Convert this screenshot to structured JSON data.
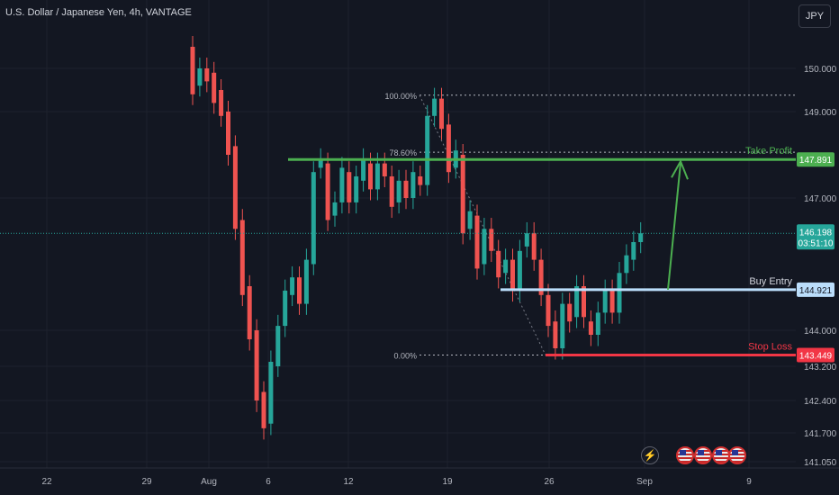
{
  "header": {
    "title": "U.S. Dollar / Japanese Yen, 4h, VANTAGE",
    "currency": "JPY"
  },
  "colors": {
    "up": "#26a69a",
    "down": "#ef5350",
    "target": "#4caf50",
    "entry": "#bbdefb",
    "stop": "#f23645",
    "bg": "#131722"
  },
  "bottom_icons": [
    "flash-icon",
    "us-flag-icon",
    "us-flag-icon",
    "us-flag-icon",
    "us-flag-icon"
  ],
  "chart_data": {
    "type": "candlestick",
    "title": "U.S. Dollar / Japanese Yen, 4h, VANTAGE",
    "y_ticks": [
      "150.000",
      "149.000",
      "147.000",
      "144.000",
      "143.200",
      "142.400",
      "141.700",
      "141.050"
    ],
    "x_ticks": [
      "22",
      "29",
      "Aug",
      "6",
      "12",
      "19",
      "26",
      "Sep",
      "9"
    ],
    "current_price": "146.198",
    "countdown": "03:51:10",
    "levels": [
      {
        "name": "Take Profit",
        "value": "147.891"
      },
      {
        "name": "Buy Entry",
        "value": "144.921"
      },
      {
        "name": "Stop Loss",
        "value": "143.449"
      }
    ],
    "fibonacci": [
      {
        "label": "100.00%",
        "price": 149.38
      },
      {
        "label": "78.60%",
        "price": 148.06
      },
      {
        "label": "0.00%",
        "price": 143.45
      }
    ],
    "candles_approx": [
      [
        150.5,
        149.4
      ],
      [
        149.6,
        150.0
      ],
      [
        150.0,
        149.7
      ],
      [
        149.9,
        149.2
      ],
      [
        149.5,
        148.9
      ],
      [
        149.0,
        148.0
      ],
      [
        148.2,
        146.3
      ],
      [
        146.5,
        144.8
      ],
      [
        145.0,
        143.8
      ],
      [
        144.0,
        142.4
      ],
      [
        142.6,
        141.8
      ],
      [
        141.9,
        143.3
      ],
      [
        143.2,
        144.1
      ],
      [
        144.1,
        144.9
      ],
      [
        144.8,
        145.2
      ],
      [
        145.2,
        144.6
      ],
      [
        144.6,
        145.6
      ],
      [
        145.5,
        147.6
      ],
      [
        147.7,
        147.9
      ],
      [
        147.8,
        146.5
      ],
      [
        146.6,
        146.9
      ],
      [
        146.9,
        147.7
      ],
      [
        147.6,
        146.9
      ],
      [
        146.9,
        147.5
      ],
      [
        147.4,
        147.9
      ],
      [
        147.8,
        147.2
      ],
      [
        147.2,
        147.8
      ],
      [
        147.8,
        147.5
      ],
      [
        147.5,
        146.8
      ],
      [
        146.9,
        147.4
      ],
      [
        147.4,
        147.0
      ],
      [
        147.0,
        147.6
      ],
      [
        147.5,
        147.3
      ],
      [
        147.3,
        148.9
      ],
      [
        148.9,
        149.3
      ],
      [
        149.3,
        148.6
      ],
      [
        148.7,
        147.6
      ],
      [
        147.7,
        148.1
      ],
      [
        148.0,
        146.2
      ],
      [
        146.3,
        146.7
      ],
      [
        146.6,
        145.4
      ],
      [
        145.5,
        146.3
      ],
      [
        146.3,
        145.8
      ],
      [
        145.8,
        145.2
      ],
      [
        145.3,
        145.6
      ],
      [
        145.6,
        144.9
      ],
      [
        144.9,
        145.8
      ],
      [
        145.9,
        146.2
      ],
      [
        146.2,
        145.6
      ],
      [
        145.6,
        144.8
      ],
      [
        144.8,
        144.1
      ],
      [
        144.2,
        143.6
      ],
      [
        143.6,
        144.6
      ],
      [
        144.6,
        144.2
      ],
      [
        144.3,
        145.0
      ],
      [
        145.0,
        144.3
      ],
      [
        144.2,
        143.9
      ],
      [
        143.9,
        144.4
      ],
      [
        144.4,
        144.9
      ],
      [
        144.9,
        144.4
      ],
      [
        144.4,
        145.3
      ],
      [
        145.3,
        145.7
      ],
      [
        145.6,
        146.0
      ],
      [
        146.0,
        146.2
      ]
    ]
  }
}
